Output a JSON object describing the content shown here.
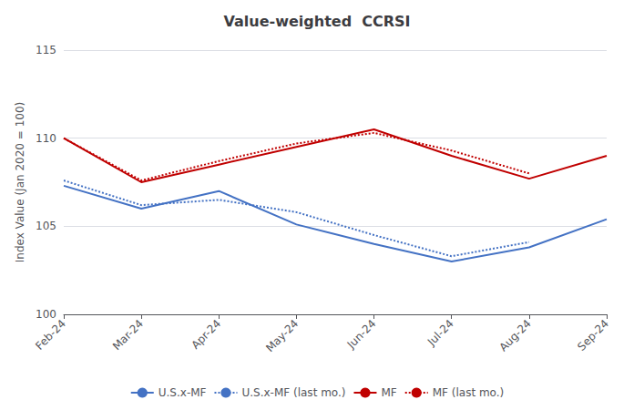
{
  "chart_data": {
    "type": "line",
    "title": "Value-weighted  CCRSI",
    "ylabel": "Index Value (Jan 2020 = 100)",
    "categories": [
      "Feb-24",
      "Mar-24",
      "Apr-24",
      "May-24",
      "Jun-24",
      "Jul-24",
      "Aug-24",
      "Sep-24"
    ],
    "series": [
      {
        "name": "U.S.x-MF",
        "color": "#4472C4",
        "line_style": "solid",
        "values": [
          107.3,
          106.0,
          107.0,
          105.1,
          104.0,
          103.0,
          103.8,
          105.4
        ]
      },
      {
        "name": "U.S.x-MF (last mo.)",
        "color": "#4472C4",
        "line_style": "dotted",
        "values": [
          107.6,
          106.2,
          106.5,
          105.8,
          104.5,
          103.3,
          104.1,
          null
        ]
      },
      {
        "name": "MF",
        "color": "#C00000",
        "line_style": "solid",
        "values": [
          110.0,
          107.5,
          108.5,
          109.5,
          110.5,
          109.0,
          107.7,
          109.0
        ]
      },
      {
        "name": "MF (last mo.)",
        "color": "#C00000",
        "line_style": "dotted",
        "values": [
          110.0,
          107.6,
          108.7,
          109.7,
          110.3,
          109.3,
          108.0,
          null
        ]
      }
    ],
    "ylim": [
      100,
      115
    ],
    "yticks": [
      100,
      105,
      110,
      115
    ],
    "grid": true,
    "legend": "bottom"
  }
}
